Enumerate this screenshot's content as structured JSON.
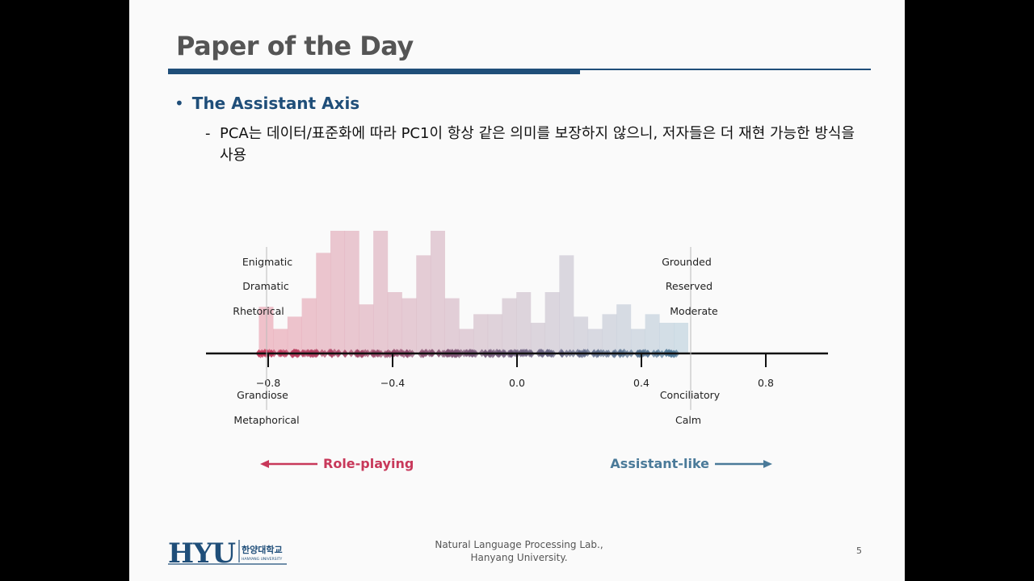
{
  "slide": {
    "title": "Paper of the Day",
    "bullet": "The Assistant Axis",
    "sub_dash": "-",
    "sub_bullet": "PCA는 데이터/표준화에 따라 PC1이 항상 같은 의미를 보장하지 않으니, 저자들은 더 재현 가능한 방식을 사용",
    "page_number": "5"
  },
  "footer": {
    "logo_text": "HYU",
    "logo_korean": "한양대학교",
    "logo_english": "HANYANG UNIVERSITY",
    "lab_line1": "Natural Language Processing Lab.,",
    "lab_line2": "Hanyang University."
  },
  "figure": {
    "axis_ticks": [
      "−0.8",
      "−0.4",
      "0.0",
      "0.4",
      "0.8"
    ],
    "labels_above_left": [
      "Enigmatic",
      "Dramatic",
      "Rhetorical"
    ],
    "labels_below_left": [
      "Grandiose",
      "Metaphorical"
    ],
    "labels_above_right": [
      "Grounded",
      "Reserved",
      "Moderate"
    ],
    "labels_below_right": [
      "Conciliatory",
      "Calm"
    ],
    "left_arrow_label": "Role-playing",
    "right_arrow_label": "Assistant-like",
    "colors": {
      "role_playing": "#c8385a",
      "assistant_like": "#4a7a99"
    }
  },
  "chart_data": {
    "type": "bar",
    "xlim": [
      -1.0,
      1.0
    ],
    "xticks": [
      -0.8,
      -0.4,
      0.0,
      0.4,
      0.8
    ],
    "bin_start": -0.83,
    "bin_width": 0.046,
    "bin_values": [
      0.38,
      0.2,
      0.3,
      0.45,
      0.82,
      1.0,
      1.0,
      0.4,
      1.0,
      0.5,
      0.45,
      0.8,
      1.0,
      0.45,
      0.2,
      0.32,
      0.32,
      0.45,
      0.5,
      0.25,
      0.5,
      0.8,
      0.3,
      0.2,
      0.32,
      0.4,
      0.2,
      0.32,
      0.25,
      0.25
    ],
    "ylim": [
      0,
      1.0
    ]
  }
}
